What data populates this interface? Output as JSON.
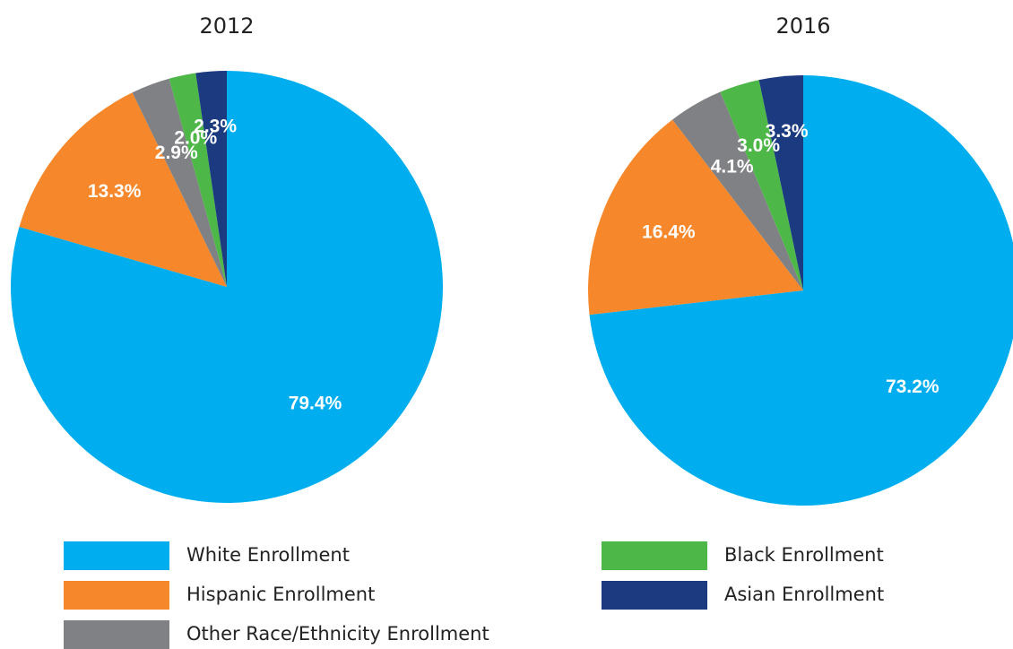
{
  "chart_data": [
    {
      "type": "pie",
      "title": "2012",
      "categories": [
        "White Enrollment",
        "Hispanic Enrollment",
        "Other Race/Ethnicity Enrollment",
        "Black Enrollment",
        "Asian Enrollment"
      ],
      "values": [
        79.4,
        13.3,
        2.9,
        2.0,
        2.3
      ],
      "value_labels": [
        "79.4%",
        "13.3%",
        "2.9%",
        "2.0%",
        "2.3%"
      ],
      "colors": [
        "#00aeef",
        "#f6872a",
        "#808184",
        "#4db848",
        "#1b3a7f"
      ]
    },
    {
      "type": "pie",
      "title": "2016",
      "categories": [
        "White Enrollment",
        "Hispanic Enrollment",
        "Other Race/Ethnicity Enrollment",
        "Black Enrollment",
        "Asian Enrollment"
      ],
      "values": [
        73.2,
        16.4,
        4.1,
        3.0,
        3.3
      ],
      "value_labels": [
        "73.2%",
        "16.4%",
        "4.1%",
        "3.0%",
        "3.3%"
      ],
      "colors": [
        "#00aeef",
        "#f6872a",
        "#808184",
        "#4db848",
        "#1b3a7f"
      ]
    }
  ]
}
